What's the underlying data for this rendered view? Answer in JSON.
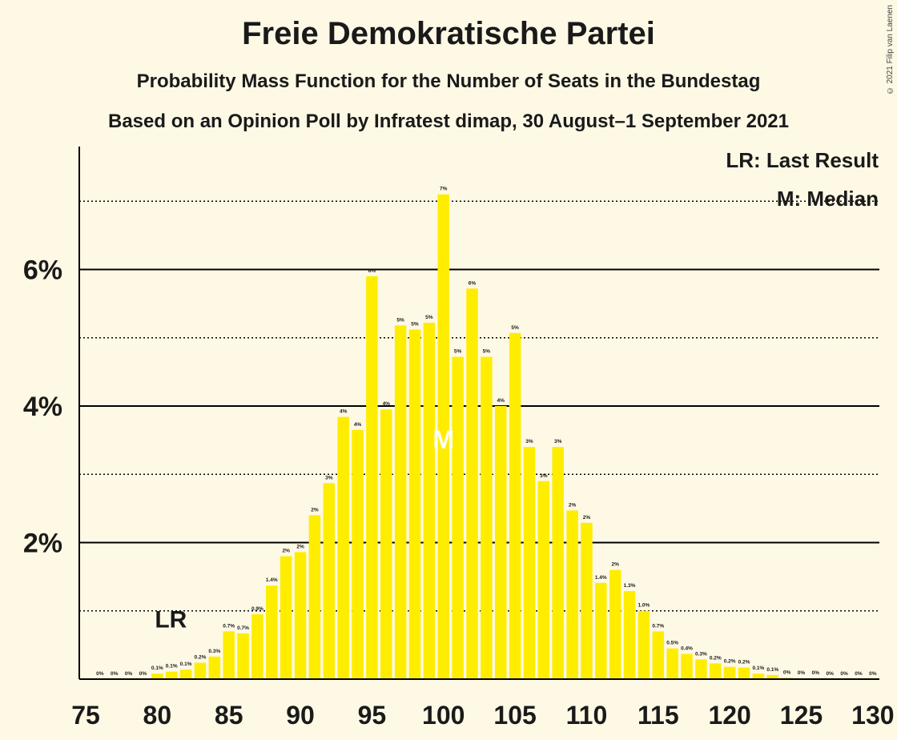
{
  "title": "Freie Demokratische Partei",
  "subtitle": "Probability Mass Function for the Number of Seats in the Bundestag",
  "subtitle2": "Based on an Opinion Poll by Infratest dimap, 30 August–1 September 2021",
  "copyright": "© 2021 Filip van Laenen",
  "legend": {
    "lr": "LR: Last Result",
    "median": "M: Median"
  },
  "markers": {
    "lr_label": "LR",
    "median_label": "M"
  },
  "colors": {
    "bar": "#FFED00",
    "background": "#FEF9E5",
    "text": "#1a1a1a"
  },
  "chart_data": {
    "type": "bar",
    "title": "Freie Demokratische Partei",
    "xlabel": "",
    "ylabel": "",
    "ylim": [
      0,
      7.8
    ],
    "xlim": [
      75,
      130
    ],
    "x_ticks": [
      "75",
      "80",
      "85",
      "90",
      "95",
      "100",
      "105",
      "110",
      "115",
      "120",
      "125",
      "130"
    ],
    "y_ticks": [
      {
        "value": 2,
        "label": "2%"
      },
      {
        "value": 4,
        "label": "4%"
      },
      {
        "value": 6,
        "label": "6%"
      }
    ],
    "dotted_gridlines": [
      1,
      3,
      5,
      7
    ],
    "last_result": 80,
    "median": 100,
    "categories": [
      76,
      77,
      78,
      79,
      80,
      81,
      82,
      83,
      84,
      85,
      86,
      87,
      88,
      89,
      90,
      91,
      92,
      93,
      94,
      95,
      96,
      97,
      98,
      99,
      100,
      101,
      102,
      103,
      104,
      105,
      106,
      107,
      108,
      109,
      110,
      111,
      112,
      113,
      114,
      115,
      116,
      117,
      118,
      119,
      120,
      121,
      122,
      123,
      124,
      125,
      126,
      127,
      128,
      129,
      130
    ],
    "values": [
      0,
      0,
      0,
      0,
      0.08,
      0.11,
      0.14,
      0.24,
      0.33,
      0.7,
      0.67,
      0.95,
      1.37,
      1.8,
      1.86,
      2.4,
      2.87,
      3.84,
      3.65,
      5.9,
      3.95,
      5.18,
      5.12,
      5.22,
      7.1,
      4.72,
      5.72,
      4.72,
      4.0,
      5.07,
      3.4,
      2.9,
      3.4,
      2.47,
      2.29,
      1.41,
      1.6,
      1.29,
      1.0,
      0.7,
      0.45,
      0.37,
      0.29,
      0.23,
      0.18,
      0.17,
      0.08,
      0.06,
      0.02,
      0.01,
      0.01,
      0,
      0,
      0,
      0
    ],
    "data_labels": [
      "0%",
      "0%",
      "0%",
      "0%",
      "0.1%",
      "0.1%",
      "0.1%",
      "0.2%",
      "0.3%",
      "0.7%",
      "0.7%",
      "0.9%",
      "1.4%",
      "2%",
      "2%",
      "2%",
      "3%",
      "4%",
      "4%",
      "6%",
      "4%",
      "5%",
      "5%",
      "5%",
      "7%",
      "5%",
      "6%",
      "5%",
      "4%",
      "5%",
      "3%",
      "3%",
      "3%",
      "2%",
      "2%",
      "1.4%",
      "2%",
      "1.3%",
      "1.0%",
      "0.7%",
      "0.5%",
      "0.4%",
      "0.3%",
      "0.2%",
      "0.2%",
      "0.2%",
      "0.1%",
      "0.1%",
      "0%",
      "0%",
      "0%",
      "0%",
      "0%",
      "0%",
      "0%"
    ]
  }
}
